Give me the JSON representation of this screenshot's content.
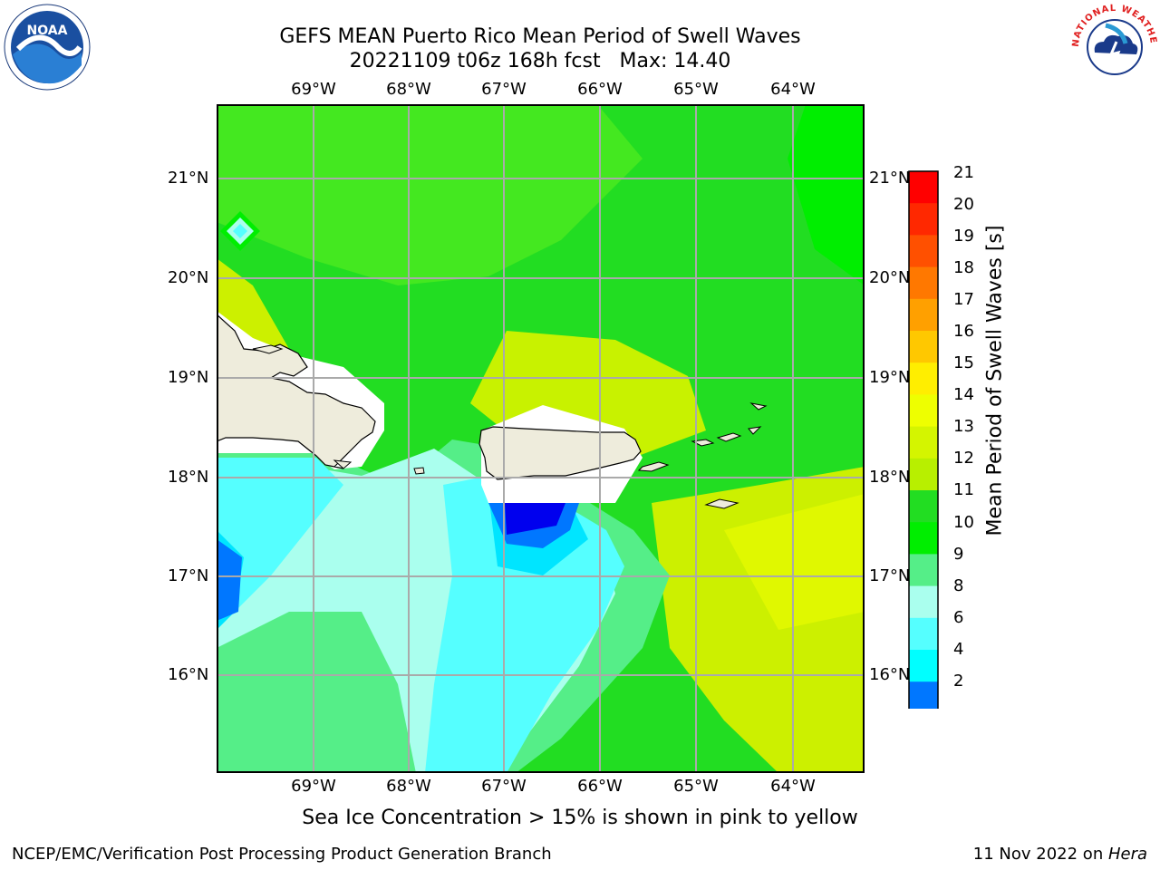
{
  "title": {
    "line1": "GEFS MEAN Puerto Rico Mean Period of Swell Waves",
    "line2": "20221109 t06z 168h fcst   Max: 14.40"
  },
  "map": {
    "lon_labels": [
      "69°W",
      "68°W",
      "67°W",
      "66°W",
      "65°W",
      "64°W"
    ],
    "lat_labels": [
      "21°N",
      "20°N",
      "19°N",
      "18°N",
      "17°N",
      "16°N"
    ]
  },
  "colorbar": {
    "label": "Mean Period of Swell Waves [s]",
    "ticks": [
      "21",
      "20",
      "19",
      "18",
      "17",
      "16",
      "15",
      "14",
      "13",
      "12",
      "11",
      "10",
      "9",
      "8",
      "6",
      "4",
      "2"
    ],
    "colors": [
      "#ff0000",
      "#ff2800",
      "#ff5000",
      "#ff7800",
      "#ffa000",
      "#ffc800",
      "#ffee00",
      "#eeff00",
      "#d4f500",
      "#b8ef00",
      "#22dd22",
      "#00ee00",
      "#55ee88",
      "#aaffee",
      "#55ffff",
      "#00ffff",
      "#0077ff",
      "#0000ee"
    ],
    "extend_color": "#0000ee"
  },
  "note": "Sea Ice Concentration > 15% is shown in pink to yellow",
  "footer": {
    "left": "NCEP/EMC/Verification Post Processing Product Generation Branch",
    "date": "11 Nov 2022 on ",
    "host": "Hera"
  },
  "logos": {
    "noaa": "NOAA",
    "nws": "NATIONAL WEATHER SERVICE"
  }
}
